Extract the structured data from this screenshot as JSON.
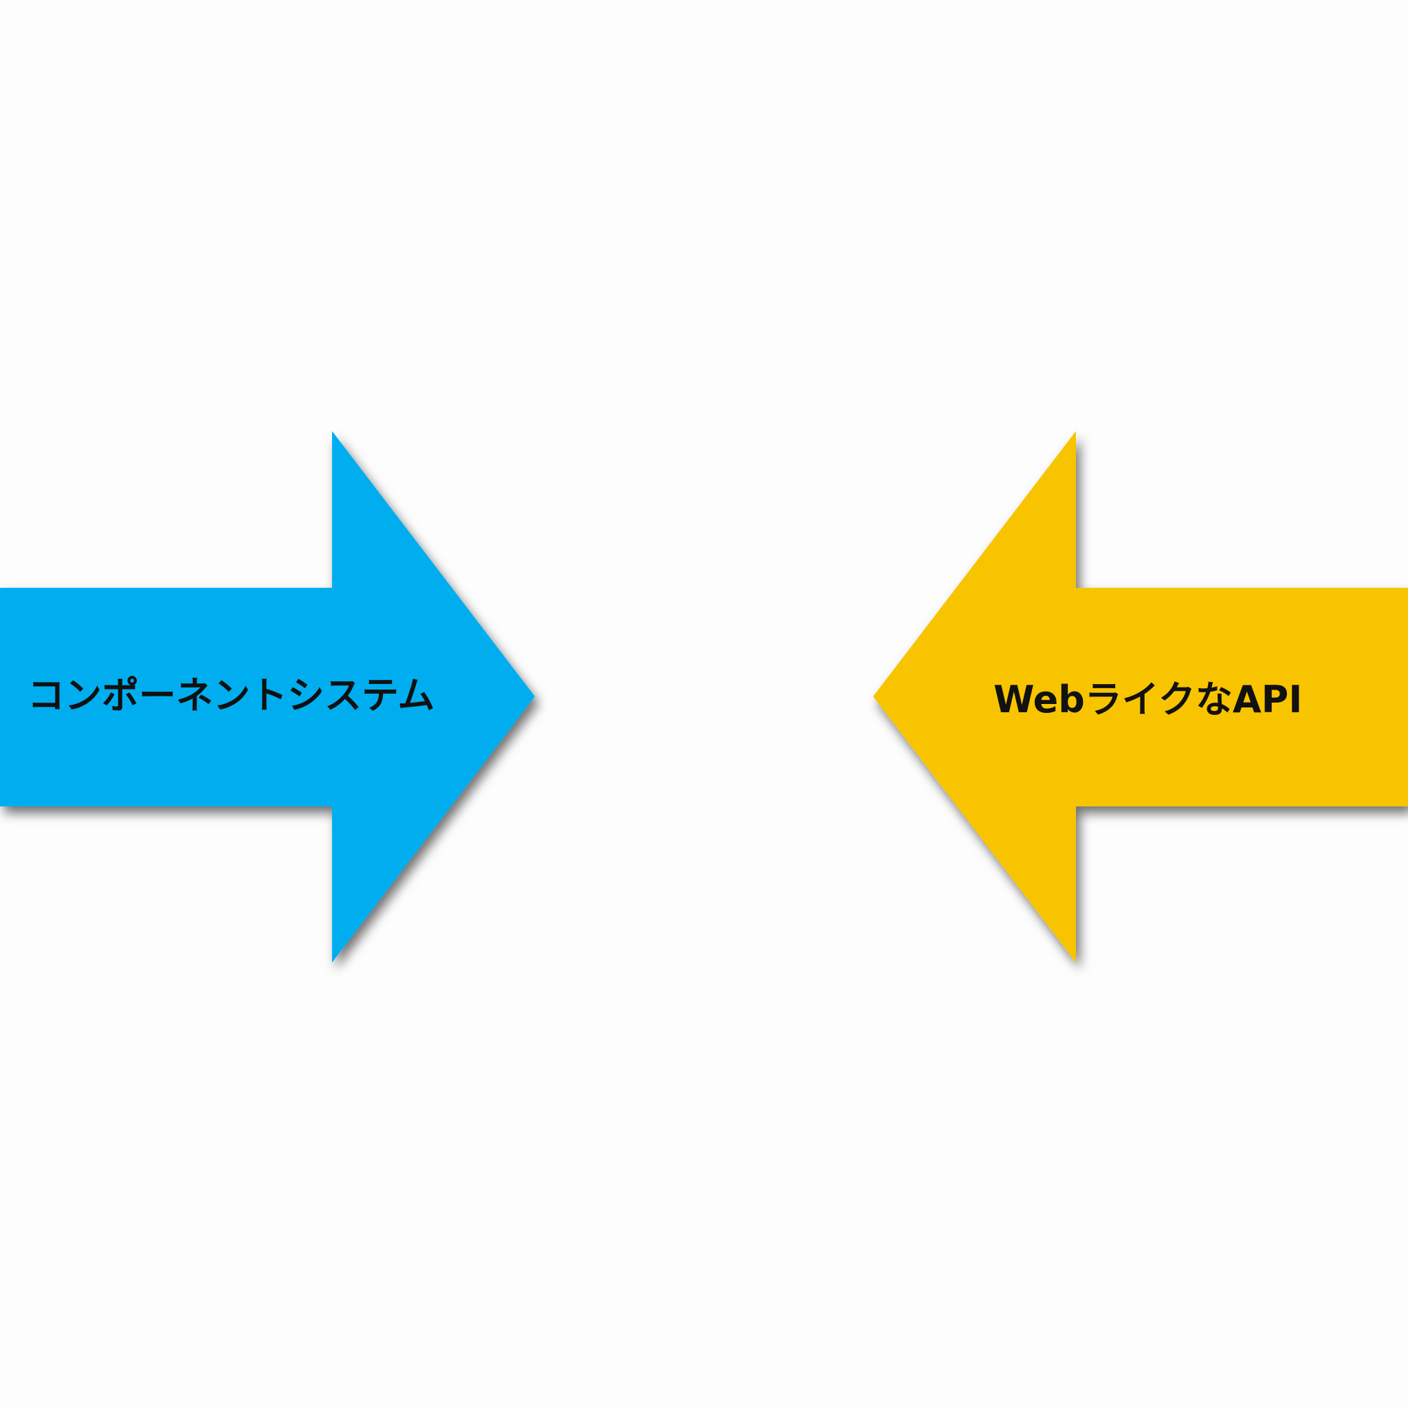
{
  "arrows": {
    "left": {
      "label": "コンポーネントシステム",
      "color": "#00aef0",
      "direction": "right"
    },
    "right": {
      "label": "WebライクなAPI",
      "color": "#f8c400",
      "direction": "left"
    }
  }
}
